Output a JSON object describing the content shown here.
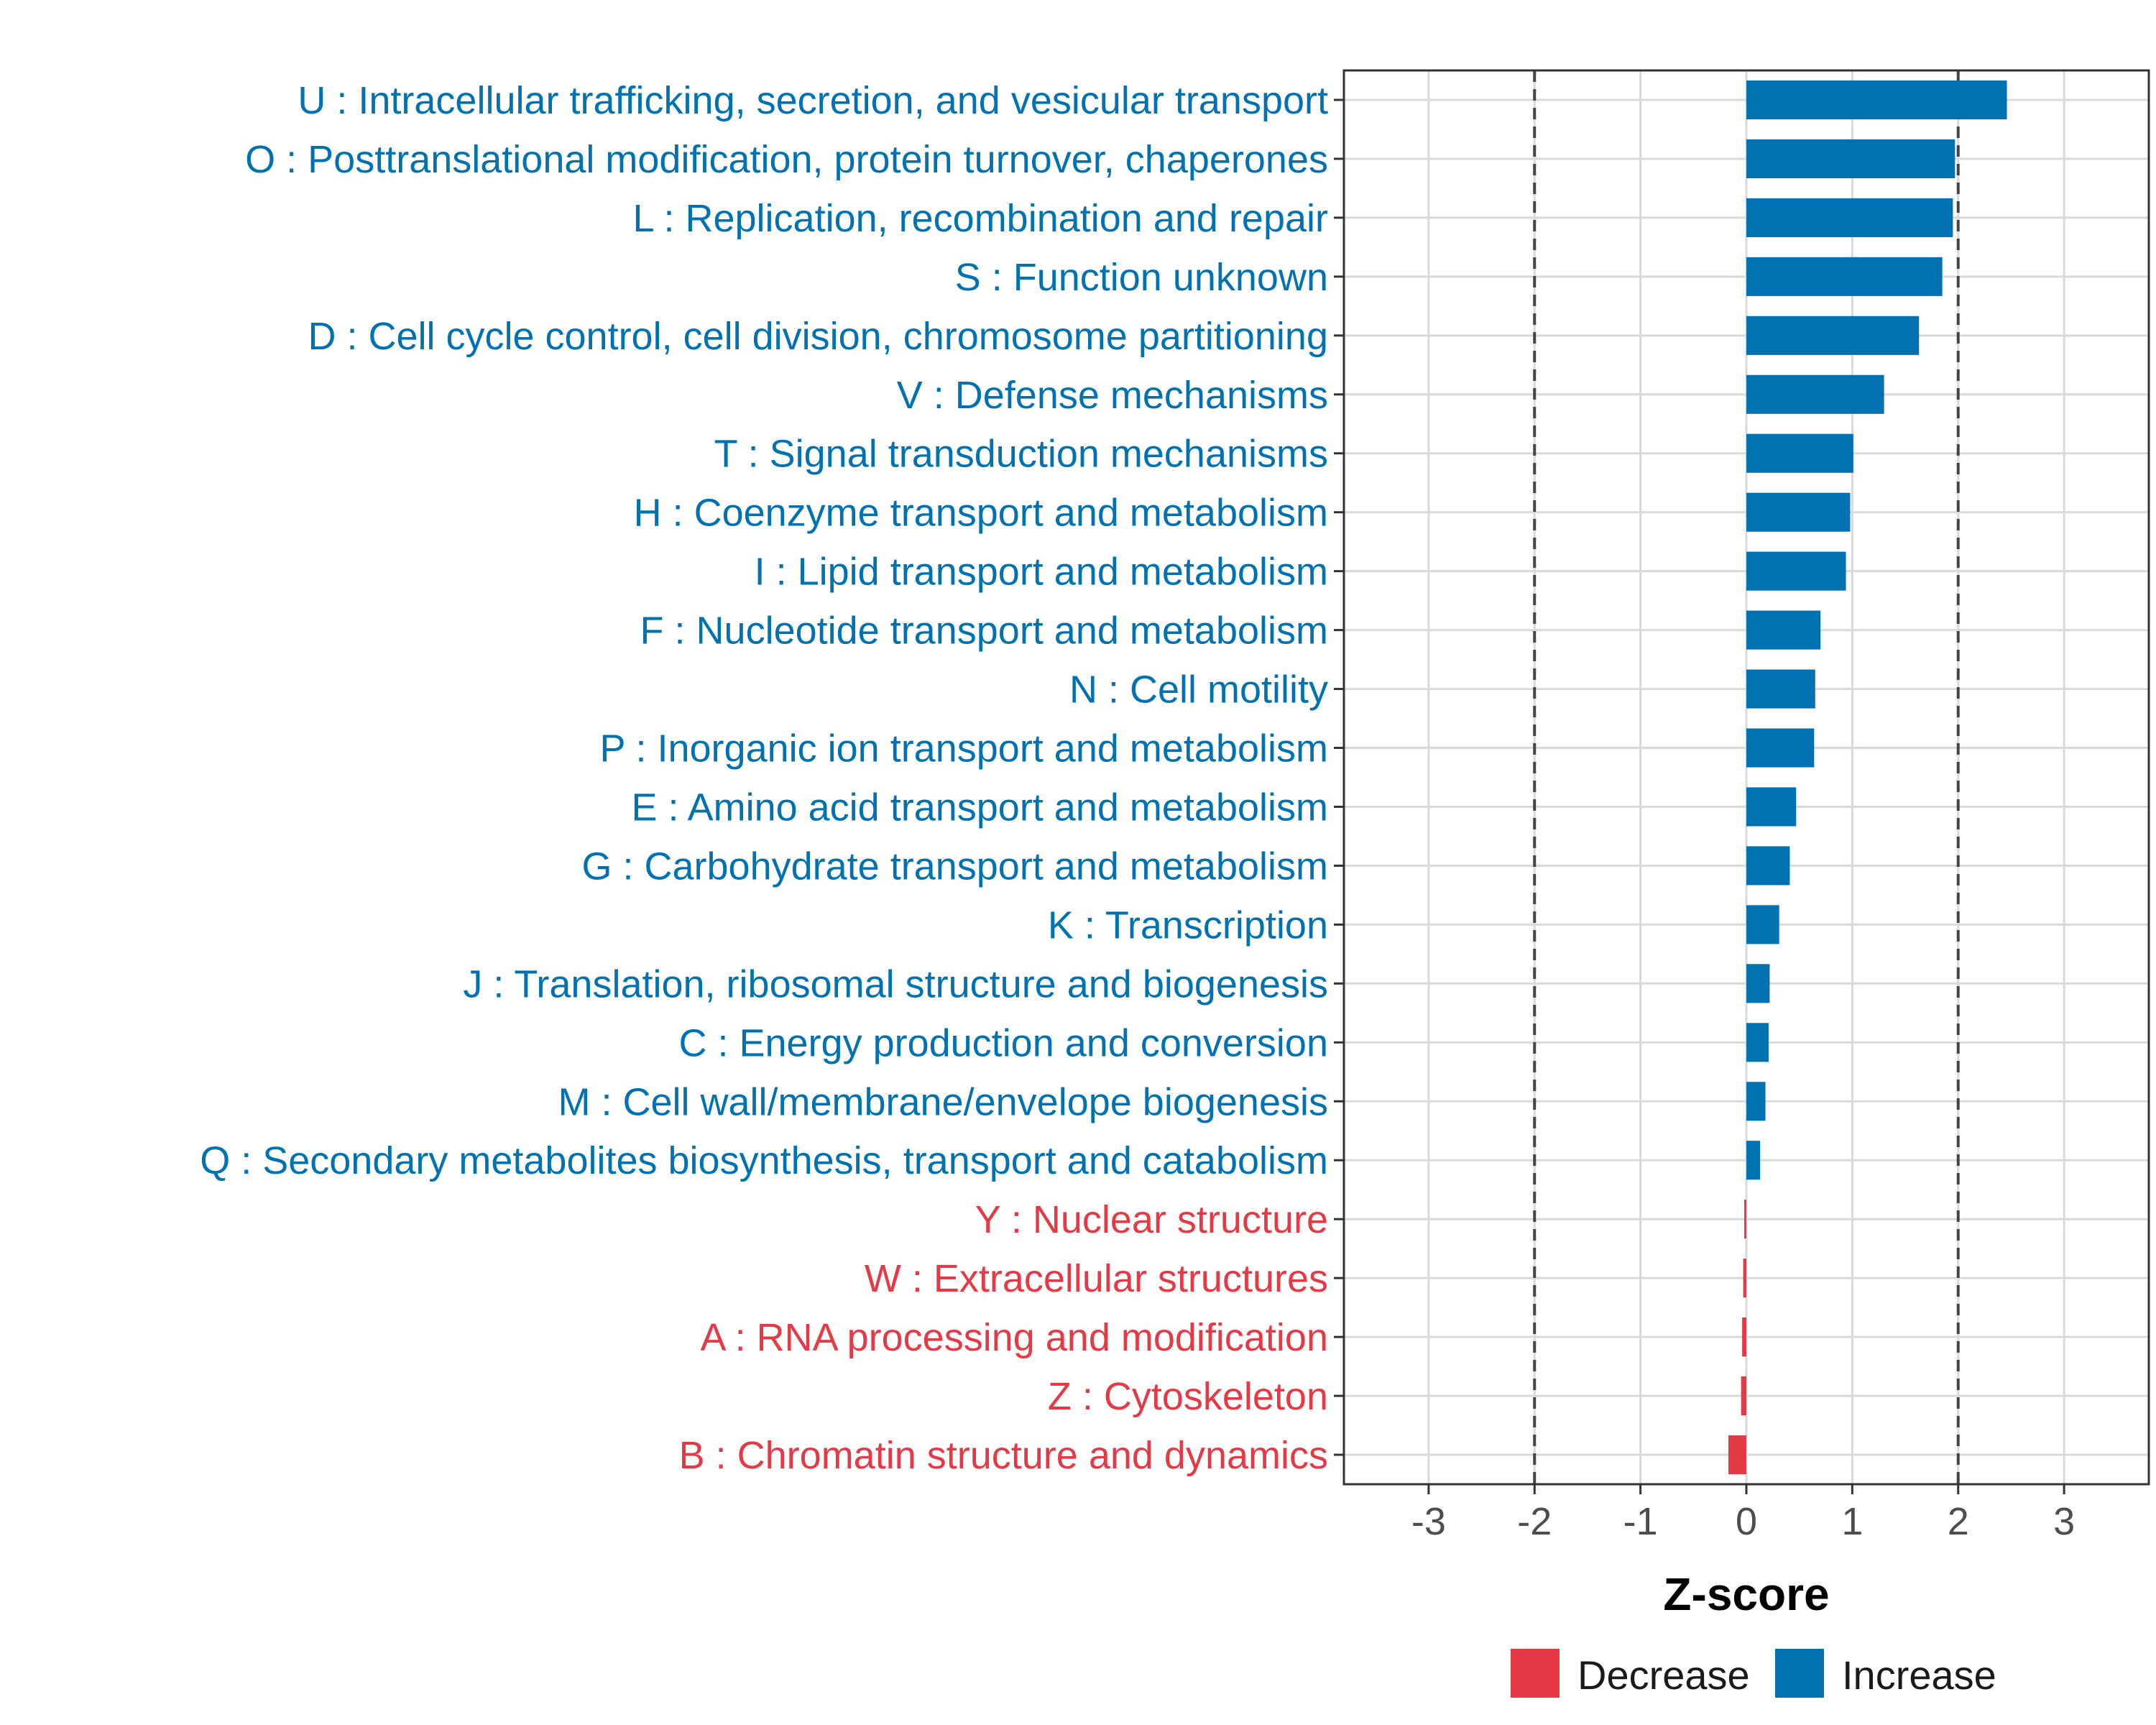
{
  "chart_data": {
    "type": "bar",
    "orientation": "horizontal",
    "xlabel": "Z-score",
    "ylabel": "",
    "xlim": [
      -3.8,
      3.8
    ],
    "x_ticks": [
      -3,
      -2,
      -1,
      0,
      1,
      2,
      3
    ],
    "x_tick_labels": [
      "-3",
      "-2",
      "-1",
      "0",
      "1",
      "2",
      "3"
    ],
    "reference_lines": [
      -2,
      2
    ],
    "grid": true,
    "categories": [
      "U : Intracellular trafficking, secretion, and vesicular transport",
      "O : Posttranslational modification, protein turnover, chaperones",
      "L : Replication, recombination and repair",
      "S : Function unknown",
      "D : Cell cycle control, cell division, chromosome partitioning",
      "V : Defense mechanisms",
      "T : Signal transduction mechanisms",
      "H : Coenzyme transport and metabolism",
      "I : Lipid transport and metabolism",
      "F : Nucleotide transport and metabolism",
      "N : Cell motility",
      "P : Inorganic ion transport and metabolism",
      "E : Amino acid transport and metabolism",
      "G : Carbohydrate transport and metabolism",
      "K : Transcription",
      "J : Translation, ribosomal structure and biogenesis",
      "C : Energy production and conversion",
      "M : Cell wall/membrane/envelope biogenesis",
      "Q : Secondary metabolites biosynthesis, transport and catabolism",
      "Y : Nuclear structure",
      "W : Extracellular structures",
      "A : RNA processing and modification",
      "Z : Cytoskeleton",
      "B : Chromatin structure and dynamics"
    ],
    "values": [
      2.46,
      1.97,
      1.95,
      1.85,
      1.63,
      1.3,
      1.01,
      0.98,
      0.94,
      0.7,
      0.65,
      0.64,
      0.47,
      0.41,
      0.31,
      0.22,
      0.21,
      0.18,
      0.13,
      -0.02,
      -0.03,
      -0.04,
      -0.05,
      -0.17
    ],
    "groups": [
      "Increase",
      "Increase",
      "Increase",
      "Increase",
      "Increase",
      "Increase",
      "Increase",
      "Increase",
      "Increase",
      "Increase",
      "Increase",
      "Increase",
      "Increase",
      "Increase",
      "Increase",
      "Increase",
      "Increase",
      "Increase",
      "Increase",
      "Decrease",
      "Decrease",
      "Decrease",
      "Decrease",
      "Decrease"
    ],
    "legend": {
      "position": "bottom",
      "entries": [
        {
          "label": "Decrease",
          "color": "#e63946"
        },
        {
          "label": "Increase",
          "color": "#0072b2"
        }
      ]
    },
    "colors": {
      "Increase": "#0072b2",
      "Decrease": "#e63946"
    }
  }
}
